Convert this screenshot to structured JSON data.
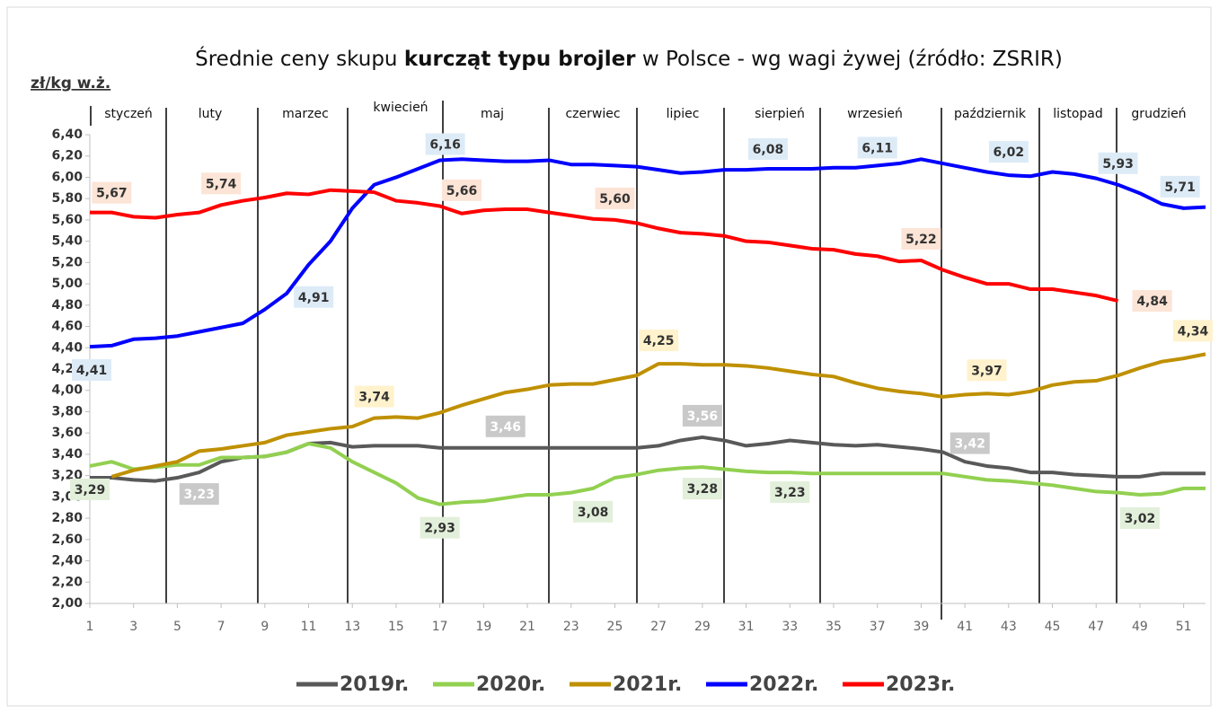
{
  "chart_data": {
    "type": "line",
    "title": [
      "Średnie ceny skupu ",
      "kurcząt typu brojler",
      " w Polsce - wg wagi żywej (źródło: ZSRIR)"
    ],
    "y_label": "zł/kg w.ż.",
    "months": [
      "styczeń",
      "luty",
      "marzec",
      "kwiecień",
      "maj",
      "czerwiec",
      "lipiec",
      "sierpień",
      "wrzesień",
      "październik",
      "listopad",
      "grudzień"
    ],
    "x": [
      1,
      2,
      3,
      4,
      5,
      6,
      7,
      8,
      9,
      10,
      11,
      12,
      13,
      14,
      15,
      16,
      17,
      18,
      19,
      20,
      21,
      22,
      23,
      24,
      25,
      26,
      27,
      28,
      29,
      30,
      31,
      32,
      33,
      34,
      35,
      36,
      37,
      38,
      39,
      40,
      41,
      42,
      43,
      44,
      45,
      46,
      47,
      48,
      49,
      50,
      51,
      52
    ],
    "xlim": [
      1,
      52
    ],
    "xticks": [
      1,
      3,
      5,
      7,
      9,
      11,
      13,
      15,
      17,
      19,
      21,
      23,
      25,
      27,
      29,
      31,
      33,
      35,
      37,
      39,
      41,
      43,
      45,
      47,
      49,
      51
    ],
    "ylim": [
      2,
      6.4
    ],
    "yticks": [
      {
        "value": 2,
        "label": "2,00"
      },
      {
        "value": 2.2,
        "label": "2,20"
      },
      {
        "value": 2.4,
        "label": "2,40"
      },
      {
        "value": 2.6,
        "label": "2,60"
      },
      {
        "value": 2.8,
        "label": "2,80"
      },
      {
        "value": 3,
        "label": "3,00"
      },
      {
        "value": 3.2,
        "label": "3,20"
      },
      {
        "value": 3.4,
        "label": "3,40"
      },
      {
        "value": 3.6,
        "label": "3,60"
      },
      {
        "value": 3.8,
        "label": "3,80"
      },
      {
        "value": 4,
        "label": "4,00"
      },
      {
        "value": 4.2,
        "label": "4,20"
      },
      {
        "value": 4.4,
        "label": "4,40"
      },
      {
        "value": 4.6,
        "label": "4,60"
      },
      {
        "value": 4.8,
        "label": "4,80"
      },
      {
        "value": 5,
        "label": "5,00"
      },
      {
        "value": 5.2,
        "label": "5,20"
      },
      {
        "value": 5.4,
        "label": "5,40"
      },
      {
        "value": 5.6,
        "label": "5,60"
      },
      {
        "value": 5.8,
        "label": "5,80"
      },
      {
        "value": 6,
        "label": "6,00"
      },
      {
        "value": 6.2,
        "label": "6,20"
      },
      {
        "value": 6.4,
        "label": "6,40"
      }
    ],
    "series": [
      {
        "name": "2019r.",
        "color": "#595959",
        "values": [
          3.18,
          3.18,
          3.16,
          3.15,
          3.18,
          3.23,
          3.33,
          3.37,
          3.38,
          3.42,
          3.5,
          3.51,
          3.47,
          3.48,
          3.48,
          3.48,
          3.46,
          3.46,
          3.46,
          3.46,
          3.46,
          3.46,
          3.46,
          3.46,
          3.46,
          3.46,
          3.48,
          3.53,
          3.56,
          3.53,
          3.48,
          3.5,
          3.53,
          3.51,
          3.49,
          3.48,
          3.49,
          3.47,
          3.45,
          3.42,
          3.33,
          3.29,
          3.27,
          3.23,
          3.23,
          3.21,
          3.2,
          3.19,
          3.19,
          3.22,
          3.22,
          3.22
        ],
        "value_labels": [
          null,
          null,
          null,
          null,
          null,
          "3,23",
          null,
          null,
          null,
          null,
          null,
          null,
          null,
          null,
          null,
          null,
          null,
          null,
          null,
          "3,46",
          null,
          null,
          null,
          null,
          null,
          null,
          null,
          null,
          "3,56",
          null,
          null,
          null,
          null,
          null,
          null,
          null,
          null,
          null,
          null,
          "3,42",
          null,
          null,
          null,
          null,
          null,
          null,
          null,
          null,
          null,
          null,
          null,
          null
        ]
      },
      {
        "name": "2020r.",
        "color": "#92d050",
        "values": [
          3.29,
          3.33,
          3.26,
          3.28,
          3.3,
          3.3,
          3.37,
          3.37,
          3.38,
          3.42,
          3.5,
          3.46,
          3.33,
          3.23,
          3.13,
          2.99,
          2.93,
          2.95,
          2.96,
          2.99,
          3.02,
          3.02,
          3.04,
          3.08,
          3.18,
          3.21,
          3.25,
          3.27,
          3.28,
          3.26,
          3.24,
          3.23,
          3.23,
          3.22,
          3.22,
          3.22,
          3.22,
          3.22,
          3.22,
          3.22,
          3.19,
          3.16,
          3.15,
          3.13,
          3.11,
          3.08,
          3.05,
          3.04,
          3.02,
          3.03,
          3.08,
          3.08
        ],
        "value_labels": [
          "3,29",
          null,
          null,
          null,
          null,
          null,
          null,
          null,
          null,
          null,
          null,
          null,
          null,
          null,
          null,
          null,
          "2,93",
          null,
          null,
          null,
          null,
          null,
          null,
          "3,08",
          null,
          null,
          null,
          null,
          "3,28",
          null,
          null,
          null,
          "3,23",
          null,
          null,
          null,
          null,
          null,
          null,
          null,
          null,
          null,
          null,
          null,
          null,
          null,
          null,
          null,
          "3,02",
          null,
          null,
          null
        ]
      },
      {
        "name": "2021r.",
        "color": "#bf9000",
        "values": [
          null,
          3.19,
          3.25,
          3.29,
          3.33,
          3.43,
          3.45,
          3.48,
          3.51,
          3.58,
          3.61,
          3.64,
          3.66,
          3.74,
          3.75,
          3.74,
          3.79,
          3.86,
          3.92,
          3.98,
          4.01,
          4.05,
          4.06,
          4.06,
          4.1,
          4.14,
          4.25,
          4.25,
          4.24,
          4.24,
          4.23,
          4.21,
          4.18,
          4.15,
          4.13,
          4.07,
          4.02,
          3.99,
          3.97,
          3.94,
          3.96,
          3.97,
          3.96,
          3.99,
          4.05,
          4.08,
          4.09,
          4.14,
          4.21,
          4.27,
          4.3,
          4.34
        ],
        "value_labels": [
          null,
          null,
          null,
          null,
          null,
          null,
          null,
          null,
          null,
          null,
          null,
          null,
          null,
          "3,74",
          null,
          null,
          null,
          null,
          null,
          null,
          null,
          null,
          null,
          null,
          null,
          null,
          "4,25",
          null,
          null,
          null,
          null,
          null,
          null,
          null,
          null,
          null,
          null,
          null,
          null,
          null,
          null,
          "3,97",
          null,
          null,
          null,
          null,
          null,
          null,
          null,
          null,
          null,
          "4,34"
        ]
      },
      {
        "name": "2022r.",
        "color": "#0000ff",
        "values": [
          4.41,
          4.42,
          4.48,
          4.49,
          4.51,
          4.55,
          4.59,
          4.63,
          4.76,
          4.91,
          5.18,
          5.4,
          5.71,
          5.93,
          6.0,
          6.08,
          6.16,
          6.17,
          6.16,
          6.15,
          6.15,
          6.16,
          6.12,
          6.12,
          6.11,
          6.1,
          6.07,
          6.04,
          6.05,
          6.07,
          6.07,
          6.08,
          6.08,
          6.08,
          6.09,
          6.09,
          6.11,
          6.13,
          6.17,
          6.13,
          6.09,
          6.05,
          6.02,
          6.01,
          6.05,
          6.03,
          5.99,
          5.93,
          5.85,
          5.75,
          5.71,
          5.72
        ],
        "value_labels": [
          "4,41",
          null,
          null,
          null,
          null,
          null,
          null,
          null,
          null,
          "4,91",
          null,
          null,
          null,
          null,
          null,
          null,
          "6,16",
          null,
          null,
          null,
          null,
          null,
          null,
          null,
          null,
          null,
          null,
          null,
          null,
          null,
          null,
          "6,08",
          null,
          null,
          null,
          null,
          "6,11",
          null,
          null,
          null,
          null,
          null,
          "6,02",
          null,
          null,
          null,
          null,
          "5,93",
          null,
          null,
          "5,71",
          null
        ]
      },
      {
        "name": "2023r.",
        "color": "#ff0000",
        "values": [
          5.67,
          5.67,
          5.63,
          5.62,
          5.65,
          5.67,
          5.74,
          5.78,
          5.81,
          5.85,
          5.84,
          5.88,
          5.87,
          5.86,
          5.78,
          5.76,
          5.73,
          5.66,
          5.69,
          5.7,
          5.7,
          5.67,
          5.64,
          5.61,
          5.6,
          5.57,
          5.52,
          5.48,
          5.47,
          5.45,
          5.4,
          5.39,
          5.36,
          5.33,
          5.32,
          5.28,
          5.26,
          5.21,
          5.22,
          5.13,
          5.06,
          5.0,
          5.0,
          4.95,
          4.95,
          4.92,
          4.89,
          4.84,
          null,
          null,
          null,
          null
        ],
        "value_labels": [
          null,
          "5,67",
          null,
          null,
          null,
          null,
          "5,74",
          null,
          null,
          null,
          null,
          null,
          null,
          null,
          null,
          null,
          null,
          "5,66",
          null,
          null,
          null,
          null,
          null,
          null,
          "5,60",
          null,
          null,
          null,
          null,
          null,
          null,
          null,
          null,
          null,
          null,
          null,
          null,
          null,
          "5,22",
          null,
          null,
          null,
          null,
          null,
          null,
          null,
          null,
          "4,84",
          null,
          null,
          null,
          null
        ]
      }
    ]
  }
}
